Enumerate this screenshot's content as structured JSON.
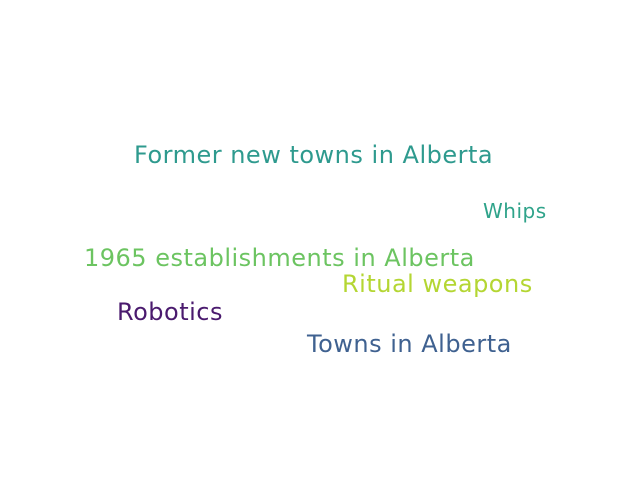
{
  "words": [
    {
      "text": "Former new towns in Alberta",
      "color": "#2e9a8e"
    },
    {
      "text": "Whips",
      "color": "#2fa38a"
    },
    {
      "text": "1965 establishments in Alberta",
      "color": "#6cc461"
    },
    {
      "text": "Ritual weapons",
      "color": "#b4d633"
    },
    {
      "text": "Robotics",
      "color": "#4a1a6e"
    },
    {
      "text": "Towns in Alberta",
      "color": "#3f6190"
    }
  ]
}
